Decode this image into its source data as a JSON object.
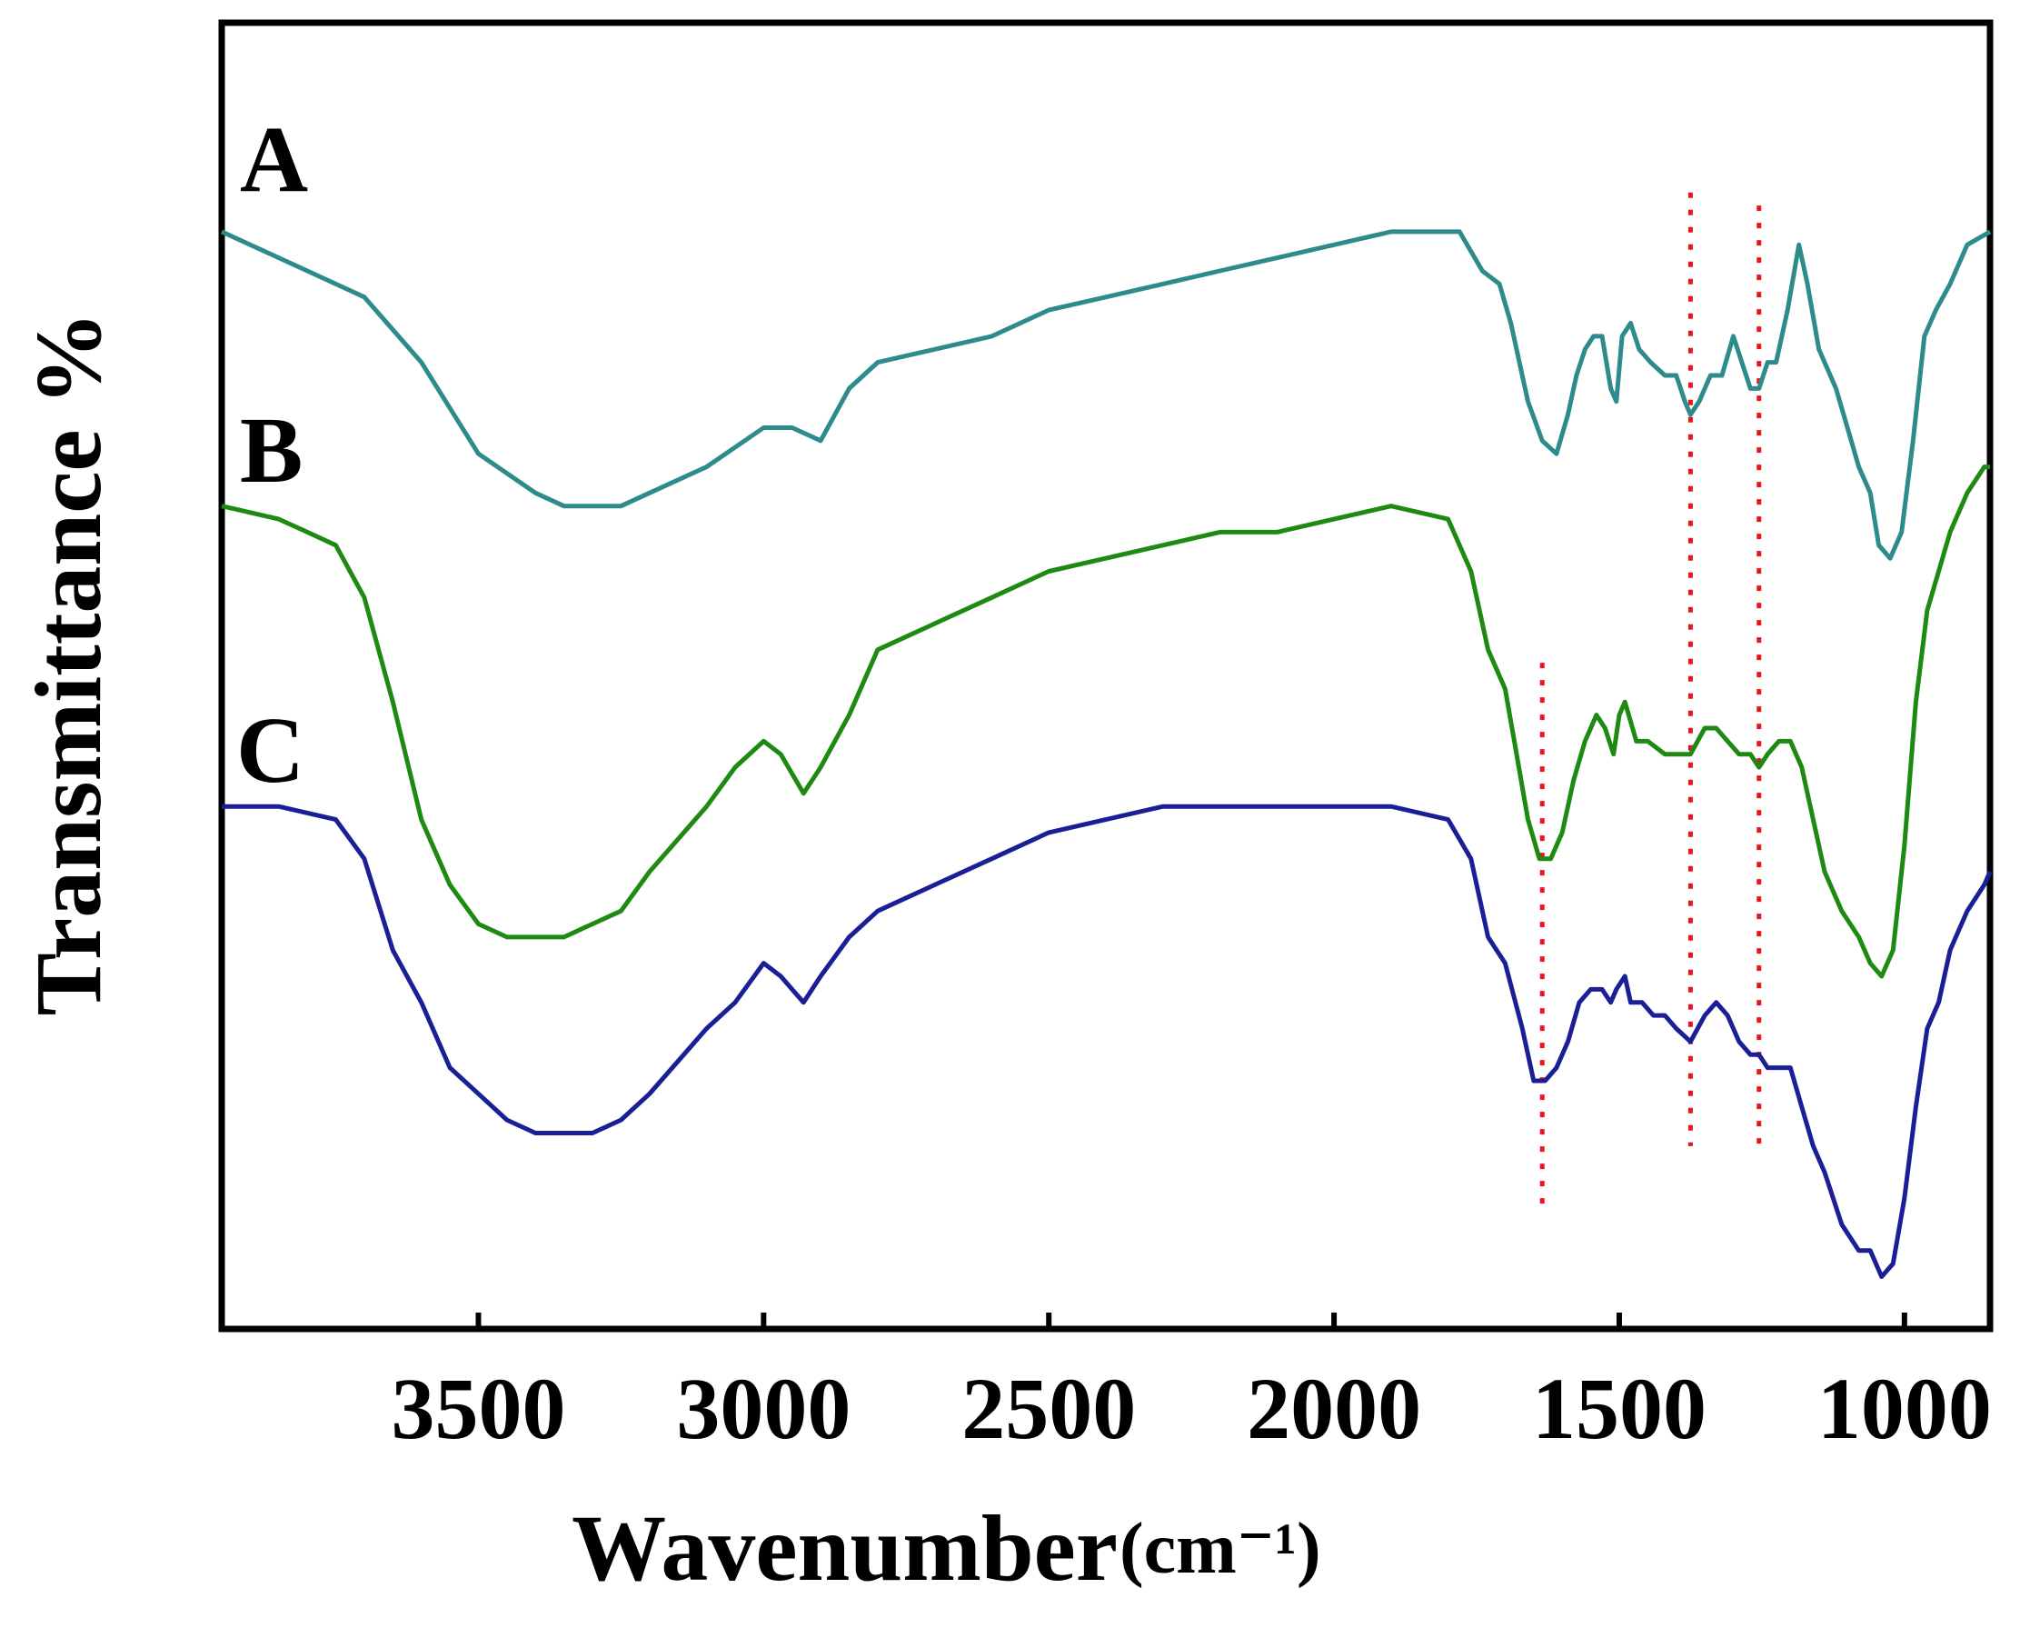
{
  "chart_data": {
    "type": "line",
    "title": "",
    "xlabel": "Wavenumber",
    "xlabel_unit": "(cm⁻¹)",
    "ylabel": "Transmittance %",
    "xlim": [
      3950,
      850
    ],
    "ylim": [
      0,
      100
    ],
    "x_reversed": true,
    "grid": false,
    "xticks": [
      3500,
      3000,
      2500,
      2000,
      1500,
      1000
    ],
    "xtick_labels": [
      "3500",
      "3000",
      "2500",
      "2000",
      "1500",
      "1000"
    ],
    "colors": {
      "A": "#2E8B8B",
      "B": "#1E8A12",
      "C": "#1A1F96",
      "marker": "#E8161C"
    },
    "reference_lines": [
      {
        "x": 1635,
        "y_from": 9,
        "y_to": 51
      },
      {
        "x": 1375,
        "y_from": 14,
        "y_to": 87
      },
      {
        "x": 1255,
        "y_from": 14,
        "y_to": 86
      }
    ],
    "series": [
      {
        "name": "A",
        "label": "A",
        "points": [
          [
            3950,
            84
          ],
          [
            3800,
            81
          ],
          [
            3700,
            79
          ],
          [
            3600,
            74
          ],
          [
            3500,
            67
          ],
          [
            3400,
            64
          ],
          [
            3350,
            63
          ],
          [
            3300,
            63
          ],
          [
            3250,
            63
          ],
          [
            3200,
            64
          ],
          [
            3100,
            66
          ],
          [
            3000,
            69
          ],
          [
            2950,
            69
          ],
          [
            2900,
            68
          ],
          [
            2850,
            72
          ],
          [
            2800,
            74
          ],
          [
            2700,
            75
          ],
          [
            2600,
            76
          ],
          [
            2500,
            78
          ],
          [
            2400,
            79
          ],
          [
            2300,
            80
          ],
          [
            2200,
            81
          ],
          [
            2100,
            82
          ],
          [
            2000,
            83
          ],
          [
            1900,
            84
          ],
          [
            1800,
            84
          ],
          [
            1780,
            84
          ],
          [
            1740,
            81
          ],
          [
            1710,
            80
          ],
          [
            1690,
            77
          ],
          [
            1660,
            71
          ],
          [
            1635,
            68
          ],
          [
            1610,
            67
          ],
          [
            1590,
            70
          ],
          [
            1575,
            73
          ],
          [
            1560,
            75
          ],
          [
            1545,
            76
          ],
          [
            1530,
            76
          ],
          [
            1515,
            72
          ],
          [
            1505,
            71
          ],
          [
            1495,
            76
          ],
          [
            1480,
            77
          ],
          [
            1465,
            75
          ],
          [
            1445,
            74
          ],
          [
            1420,
            73
          ],
          [
            1400,
            73
          ],
          [
            1385,
            71
          ],
          [
            1375,
            70
          ],
          [
            1360,
            71
          ],
          [
            1340,
            73
          ],
          [
            1320,
            73
          ],
          [
            1300,
            76
          ],
          [
            1285,
            74
          ],
          [
            1270,
            72
          ],
          [
            1255,
            72
          ],
          [
            1240,
            74
          ],
          [
            1225,
            74
          ],
          [
            1205,
            78
          ],
          [
            1185,
            83
          ],
          [
            1170,
            80
          ],
          [
            1150,
            75
          ],
          [
            1120,
            72
          ],
          [
            1100,
            69
          ],
          [
            1080,
            66
          ],
          [
            1060,
            64
          ],
          [
            1045,
            60
          ],
          [
            1025,
            59
          ],
          [
            1005,
            61
          ],
          [
            985,
            68
          ],
          [
            965,
            76
          ],
          [
            945,
            78
          ],
          [
            920,
            80
          ],
          [
            890,
            83
          ],
          [
            850,
            84
          ]
        ]
      },
      {
        "name": "B",
        "label": "B",
        "points": [
          [
            3950,
            63
          ],
          [
            3850,
            62
          ],
          [
            3800,
            61
          ],
          [
            3750,
            60
          ],
          [
            3700,
            56
          ],
          [
            3650,
            48
          ],
          [
            3600,
            39
          ],
          [
            3550,
            34
          ],
          [
            3500,
            31
          ],
          [
            3450,
            30
          ],
          [
            3400,
            30
          ],
          [
            3350,
            30
          ],
          [
            3300,
            31
          ],
          [
            3250,
            32
          ],
          [
            3200,
            35
          ],
          [
            3100,
            40
          ],
          [
            3050,
            43
          ],
          [
            3000,
            45
          ],
          [
            2970,
            44
          ],
          [
            2930,
            41
          ],
          [
            2900,
            43
          ],
          [
            2850,
            47
          ],
          [
            2800,
            52
          ],
          [
            2700,
            54
          ],
          [
            2600,
            56
          ],
          [
            2500,
            58
          ],
          [
            2400,
            59
          ],
          [
            2300,
            60
          ],
          [
            2200,
            61
          ],
          [
            2100,
            61
          ],
          [
            2000,
            62
          ],
          [
            1900,
            63
          ],
          [
            1800,
            62
          ],
          [
            1760,
            58
          ],
          [
            1730,
            52
          ],
          [
            1700,
            49
          ],
          [
            1680,
            44
          ],
          [
            1660,
            39
          ],
          [
            1640,
            36
          ],
          [
            1620,
            36
          ],
          [
            1600,
            38
          ],
          [
            1580,
            42
          ],
          [
            1560,
            45
          ],
          [
            1540,
            47
          ],
          [
            1525,
            46
          ],
          [
            1510,
            44
          ],
          [
            1500,
            47
          ],
          [
            1490,
            48
          ],
          [
            1470,
            45
          ],
          [
            1450,
            45
          ],
          [
            1420,
            44
          ],
          [
            1400,
            44
          ],
          [
            1375,
            44
          ],
          [
            1350,
            46
          ],
          [
            1330,
            46
          ],
          [
            1310,
            45
          ],
          [
            1290,
            44
          ],
          [
            1270,
            44
          ],
          [
            1255,
            43
          ],
          [
            1240,
            44
          ],
          [
            1220,
            45
          ],
          [
            1200,
            45
          ],
          [
            1180,
            43
          ],
          [
            1160,
            39
          ],
          [
            1140,
            35
          ],
          [
            1110,
            32
          ],
          [
            1080,
            30
          ],
          [
            1060,
            28
          ],
          [
            1040,
            27
          ],
          [
            1020,
            29
          ],
          [
            1000,
            37
          ],
          [
            980,
            48
          ],
          [
            960,
            55
          ],
          [
            940,
            58
          ],
          [
            920,
            61
          ],
          [
            890,
            64
          ],
          [
            860,
            66
          ],
          [
            850,
            66
          ]
        ]
      },
      {
        "name": "C",
        "label": "C",
        "points": [
          [
            3950,
            40
          ],
          [
            3850,
            40
          ],
          [
            3750,
            39
          ],
          [
            3700,
            36
          ],
          [
            3650,
            29
          ],
          [
            3600,
            25
          ],
          [
            3550,
            20
          ],
          [
            3500,
            18
          ],
          [
            3450,
            16
          ],
          [
            3400,
            15
          ],
          [
            3350,
            15
          ],
          [
            3300,
            15
          ],
          [
            3250,
            16
          ],
          [
            3200,
            18
          ],
          [
            3100,
            23
          ],
          [
            3050,
            25
          ],
          [
            3000,
            28
          ],
          [
            2970,
            27
          ],
          [
            2930,
            25
          ],
          [
            2900,
            27
          ],
          [
            2850,
            30
          ],
          [
            2800,
            32
          ],
          [
            2700,
            34
          ],
          [
            2600,
            36
          ],
          [
            2500,
            38
          ],
          [
            2400,
            39
          ],
          [
            2300,
            40
          ],
          [
            2200,
            40
          ],
          [
            2100,
            40
          ],
          [
            2000,
            40
          ],
          [
            1900,
            40
          ],
          [
            1800,
            39
          ],
          [
            1760,
            36
          ],
          [
            1730,
            30
          ],
          [
            1700,
            28
          ],
          [
            1670,
            23
          ],
          [
            1650,
            19
          ],
          [
            1630,
            19
          ],
          [
            1610,
            20
          ],
          [
            1590,
            22
          ],
          [
            1570,
            25
          ],
          [
            1550,
            26
          ],
          [
            1530,
            26
          ],
          [
            1515,
            25
          ],
          [
            1505,
            26
          ],
          [
            1490,
            27
          ],
          [
            1480,
            25
          ],
          [
            1460,
            25
          ],
          [
            1440,
            24
          ],
          [
            1420,
            24
          ],
          [
            1400,
            23
          ],
          [
            1375,
            22
          ],
          [
            1350,
            24
          ],
          [
            1330,
            25
          ],
          [
            1310,
            24
          ],
          [
            1290,
            22
          ],
          [
            1270,
            21
          ],
          [
            1255,
            21
          ],
          [
            1240,
            20
          ],
          [
            1220,
            20
          ],
          [
            1200,
            20
          ],
          [
            1180,
            17
          ],
          [
            1160,
            14
          ],
          [
            1140,
            12
          ],
          [
            1110,
            8
          ],
          [
            1080,
            6
          ],
          [
            1060,
            6
          ],
          [
            1040,
            4
          ],
          [
            1020,
            5
          ],
          [
            1000,
            10
          ],
          [
            980,
            17
          ],
          [
            960,
            23
          ],
          [
            940,
            25
          ],
          [
            920,
            29
          ],
          [
            890,
            32
          ],
          [
            860,
            34
          ],
          [
            850,
            35
          ]
        ]
      }
    ]
  }
}
